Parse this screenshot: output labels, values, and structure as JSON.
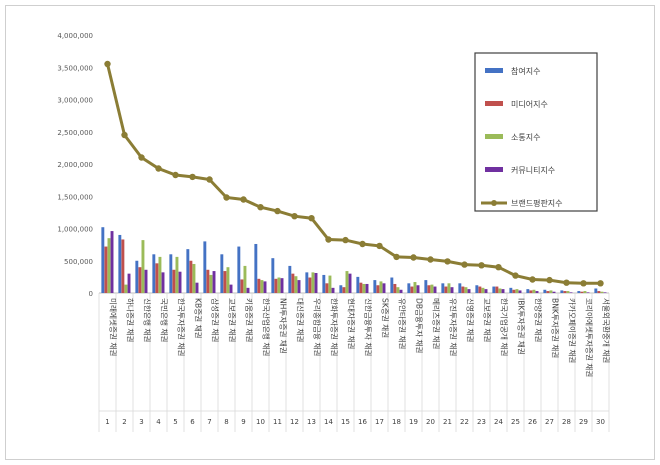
{
  "chart_data": {
    "type": "bar",
    "title": "",
    "xlabel": "",
    "ylabel": "",
    "ylim": [
      0,
      4000000
    ],
    "yticks": [
      "0",
      "500,000",
      "1,000,000",
      "1,500,000",
      "2,000,000",
      "2,500,000",
      "3,000,000",
      "3,500,000",
      "4,000,000"
    ],
    "grid": false,
    "legend": "top-right",
    "ranks": [
      "1",
      "2",
      "3",
      "4",
      "5",
      "6",
      "7",
      "8",
      "9",
      "10",
      "11",
      "12",
      "13",
      "14",
      "15",
      "16",
      "17",
      "18",
      "19",
      "20",
      "21",
      "22",
      "23",
      "24",
      "25",
      "26",
      "27",
      "28",
      "29",
      "30"
    ],
    "categories": [
      "미래에셋증권 채권",
      "하나증권 채권",
      "신한은행 채권",
      "국민은행 채권",
      "한국투자증권 채권",
      "KB증권 채권",
      "삼성증권 채권",
      "교보증권 채권",
      "키움증권 채권",
      "한국산업은행 채권",
      "NH투자증권 채권",
      "대신증권 채권",
      "우리종합금융 채권",
      "한화투자증권 채권",
      "현대차증권 채권",
      "신한금융투자 채권",
      "SK증권 채권",
      "유안타증권 채권",
      "DB금융투자 채권",
      "메리츠증권 채권",
      "유진투자증권 채권",
      "신영증권 채권",
      "교보증권 채권",
      "한국기업공개 채권",
      "IBK투자증권 채권",
      "한양증권 채권",
      "BNK투자증권 채권",
      "카카오페이증권 채권",
      "코리아에셋투자증권 채권",
      "서울외국환중개 채권"
    ],
    "series": [
      {
        "name": "참여지수",
        "color": "#4472c4",
        "type": "bar",
        "values": [
          1020000,
          900000,
          500000,
          600000,
          600000,
          680000,
          800000,
          600000,
          720000,
          760000,
          540000,
          420000,
          320000,
          280000,
          120000,
          250000,
          200000,
          240000,
          150000,
          200000,
          150000,
          150000,
          120000,
          100000,
          80000,
          60000,
          50000,
          40000,
          30000,
          70000
        ]
      },
      {
        "name": "미디어지수",
        "color": "#c0504d",
        "type": "bar",
        "values": [
          720000,
          830000,
          400000,
          460000,
          360000,
          500000,
          360000,
          340000,
          210000,
          220000,
          220000,
          300000,
          240000,
          150000,
          90000,
          160000,
          120000,
          140000,
          100000,
          120000,
          100000,
          100000,
          100000,
          100000,
          50000,
          40000,
          30000,
          30000,
          20000,
          30000
        ]
      },
      {
        "name": "소통지수",
        "color": "#9bbb59",
        "type": "bar",
        "values": [
          850000,
          130000,
          820000,
          560000,
          560000,
          450000,
          280000,
          400000,
          420000,
          200000,
          240000,
          260000,
          320000,
          270000,
          340000,
          140000,
          180000,
          90000,
          170000,
          130000,
          150000,
          90000,
          80000,
          70000,
          60000,
          50000,
          40000,
          30000,
          30000,
          20000
        ]
      },
      {
        "name": "커뮤니티지수",
        "color": "#7030a0",
        "type": "bar",
        "values": [
          960000,
          300000,
          360000,
          320000,
          330000,
          160000,
          340000,
          130000,
          80000,
          180000,
          230000,
          200000,
          310000,
          80000,
          300000,
          140000,
          150000,
          50000,
          120000,
          100000,
          90000,
          60000,
          60000,
          60000,
          40000,
          30000,
          20000,
          10000,
          10000,
          10000
        ]
      },
      {
        "name": "브랜드평판지수",
        "color": "#8b7d35",
        "type": "line",
        "values": [
          3550000,
          2450000,
          2100000,
          1930000,
          1830000,
          1800000,
          1760000,
          1480000,
          1450000,
          1330000,
          1270000,
          1190000,
          1160000,
          830000,
          820000,
          760000,
          730000,
          560000,
          550000,
          520000,
          490000,
          440000,
          430000,
          400000,
          270000,
          210000,
          200000,
          160000,
          150000,
          150000
        ]
      }
    ]
  }
}
